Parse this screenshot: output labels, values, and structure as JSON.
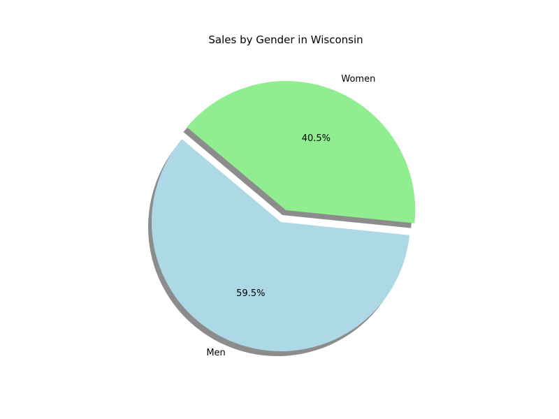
{
  "chart_data": {
    "type": "pie",
    "title": "Sales by Gender in Wisconsin",
    "start_angle_deg": 140,
    "shadow": true,
    "slices": [
      {
        "label": "Men",
        "value": 59.5,
        "pct_label": "59.5%",
        "color": "#add8e6",
        "explode": 0
      },
      {
        "label": "Women",
        "value": 40.5,
        "pct_label": "40.5%",
        "color": "#90ee90",
        "explode": 0.1
      }
    ]
  }
}
